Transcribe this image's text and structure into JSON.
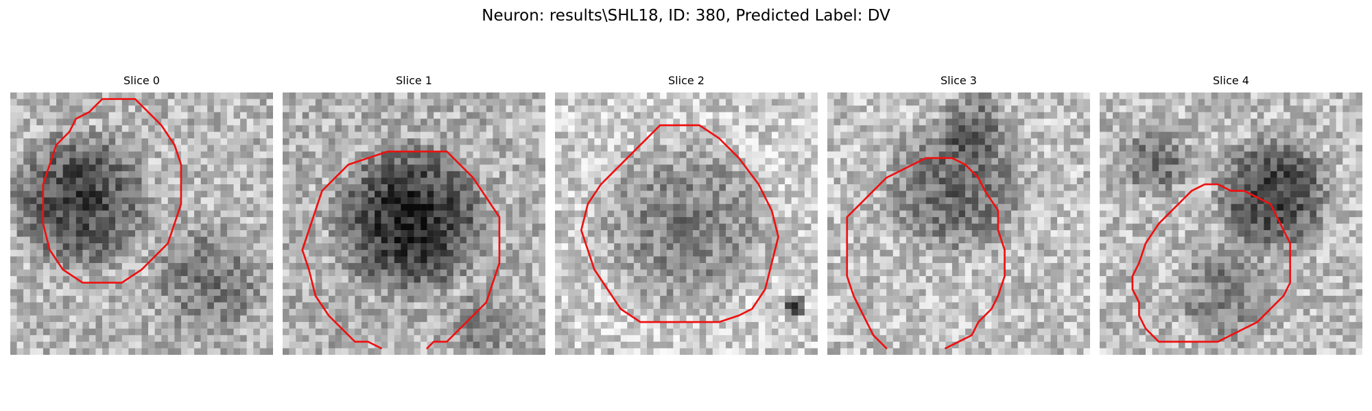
{
  "figure": {
    "title": "Neuron: results\\SHL18, ID: 380, Predicted Label: DV",
    "contour_color": "#ee1111",
    "panels": [
      {
        "title": "Slice 0"
      },
      {
        "title": "Slice 1"
      },
      {
        "title": "Slice 2"
      },
      {
        "title": "Slice 3"
      },
      {
        "title": "Slice 4"
      }
    ]
  }
}
